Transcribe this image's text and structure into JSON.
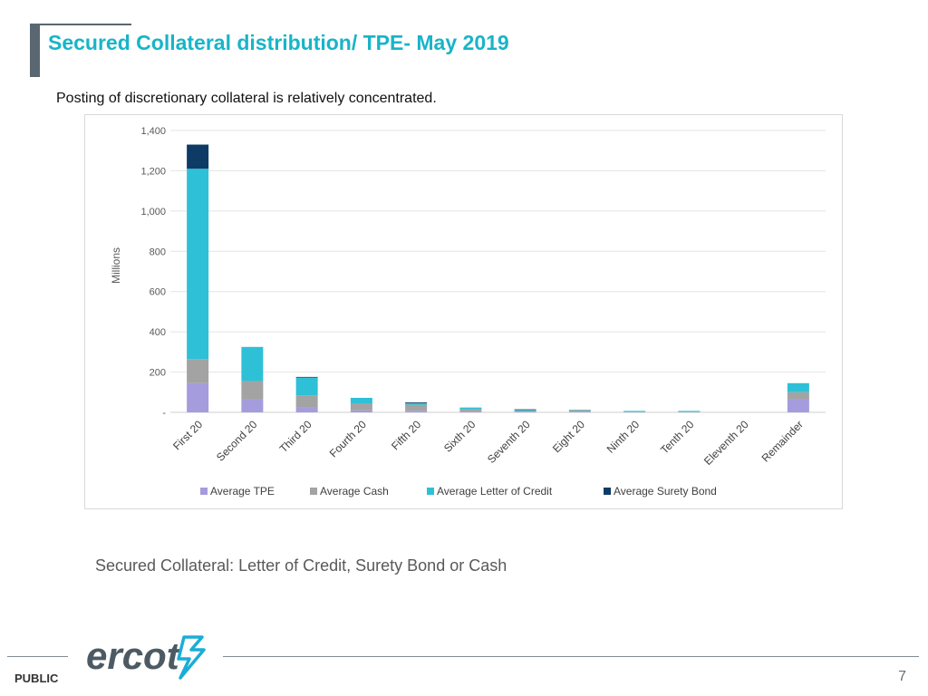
{
  "header": {
    "title": "Secured Collateral distribution/ TPE- May 2019",
    "subtitle": "Posting of discretionary collateral is relatively concentrated."
  },
  "caption": "Secured Collateral: Letter of Credit, Surety Bond or Cash",
  "footer": {
    "label": "PUBLIC",
    "page_number": "7",
    "logo_text": "ercot"
  },
  "colors": {
    "title": "#18b4c8",
    "tpe": "#a49cdd",
    "cash": "#a3a3a3",
    "letter_of_credit": "#2ec0d6",
    "surety_bond": "#0d3b66",
    "logo": "#4d5a63",
    "logo_accent": "#1aaed6"
  },
  "chart_data": {
    "type": "bar",
    "stacked": true,
    "ylabel": "Millions",
    "ylim": [
      0,
      1400
    ],
    "yticks": [
      0,
      200,
      400,
      600,
      800,
      1000,
      1200,
      1400
    ],
    "ytick_labels": [
      "-",
      "200",
      "400",
      "600",
      "800",
      "1,000",
      "1,200",
      "1,400"
    ],
    "grid": true,
    "legend_position": "bottom",
    "categories": [
      "First 20",
      "Second 20",
      "Third 20",
      "Fourth 20",
      "Fifth 20",
      "Sixth 20",
      "Seventh 20",
      "Eight 20",
      "Ninth 20",
      "Tenth 20",
      "Eleventh 20",
      "Remainder"
    ],
    "series": [
      {
        "name": "Average  TPE",
        "color": "#a49cdd",
        "values": [
          145,
          65,
          25,
          10,
          8,
          5,
          3,
          3,
          2,
          2,
          0,
          65
        ]
      },
      {
        "name": "Average  Cash",
        "color": "#a3a3a3",
        "values": [
          120,
          90,
          60,
          35,
          30,
          10,
          4,
          8,
          1,
          1,
          0,
          35
        ]
      },
      {
        "name": "Average  Letter of Credit",
        "color": "#2ec0d6",
        "values": [
          945,
          170,
          88,
          27,
          8,
          9,
          5,
          2,
          4,
          4,
          0,
          45
        ]
      },
      {
        "name": "Average Surety Bond",
        "color": "#0d3b66",
        "values": [
          120,
          0,
          3,
          0,
          4,
          0,
          3,
          0,
          0,
          0,
          0,
          0
        ]
      }
    ]
  }
}
